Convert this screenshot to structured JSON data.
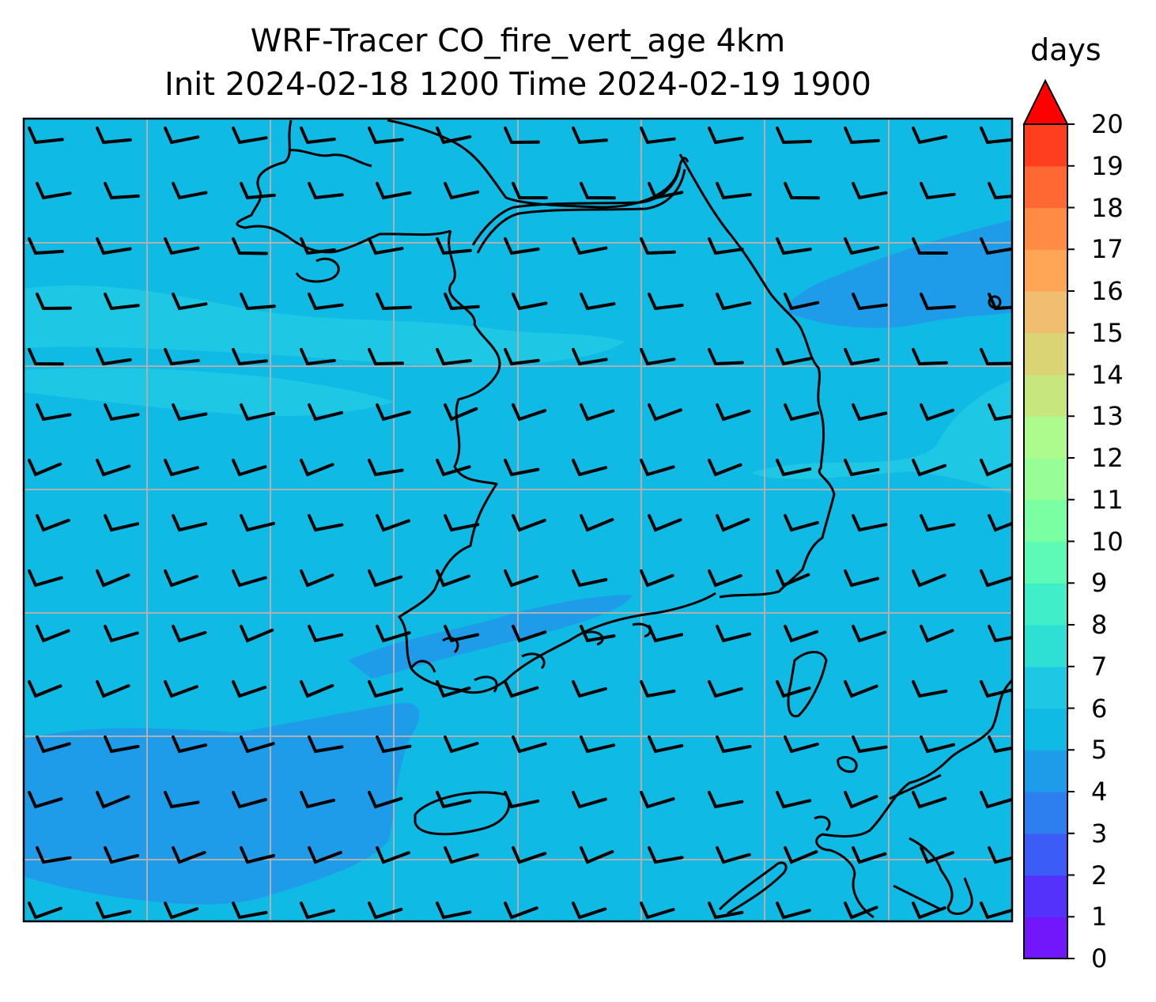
{
  "title_line1": "WRF-Tracer CO_fire_vert_age 4km",
  "title_line2": "Init 2024-02-18 1200 Time 2024-02-19 1900",
  "colorbar": {
    "unit": "days",
    "min": 0,
    "max": 20,
    "ticks": [
      "0",
      "1",
      "2",
      "3",
      "4",
      "5",
      "6",
      "7",
      "8",
      "9",
      "10",
      "11",
      "12",
      "13",
      "14",
      "15",
      "16",
      "17",
      "18",
      "19",
      "20"
    ],
    "extend": "max",
    "colors": [
      "#7216fb",
      "#5432fb",
      "#3b5cf6",
      "#2d7ff0",
      "#1e9be9",
      "#0fbae4",
      "#1ec7e3",
      "#2ee0d3",
      "#40eeca",
      "#5df9b6",
      "#7affa3",
      "#97fd96",
      "#adfa8d",
      "#c8e67e",
      "#dbd475",
      "#f1bd70",
      "#fea656",
      "#ff8b45",
      "#ff6733",
      "#ff3e1f",
      "#ff1a0d"
    ],
    "extend_color": "#ff0000"
  },
  "field": {
    "background_level_days": 5.5,
    "regions": [
      {
        "id": "band-north-west",
        "level_days": 6.5
      },
      {
        "id": "band-mid-west",
        "level_days": 6.5
      },
      {
        "id": "patch-east-coast",
        "level_days": 6.5
      },
      {
        "id": "patch-north-east",
        "level_days": 4.5
      },
      {
        "id": "patch-south-west",
        "level_days": 4.5
      },
      {
        "id": "patch-south-coast",
        "level_days": 4.5
      }
    ]
  },
  "map": {
    "gridlines": true,
    "gridline_color": "#b0b0b0",
    "coastline_color": "#000000",
    "wind_barbs": true
  }
}
